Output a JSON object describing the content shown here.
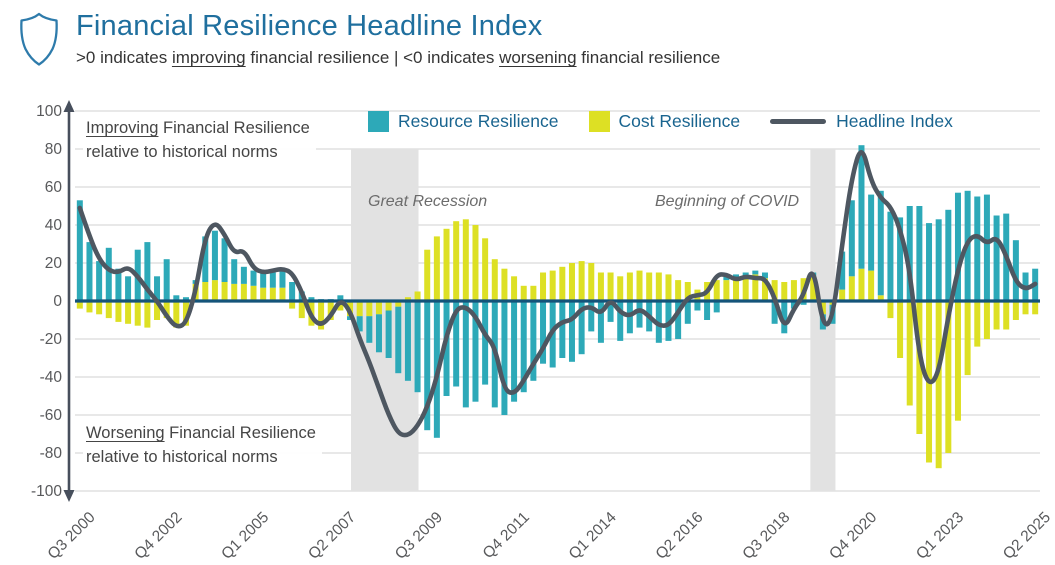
{
  "header": {
    "title": "Financial Resilience Headline Index",
    "subtitle": {
      "part1": ">0 indicates ",
      "underline1": "improving",
      "part2": " financial resilience | <0 indicates ",
      "underline2": "worsening",
      "part3": " financial resilience"
    }
  },
  "legend": {
    "resource_label": "Resource Resilience",
    "cost_label": "Cost Resilience",
    "headline_label": "Headline Index"
  },
  "annotations": {
    "improving_word": "Improving",
    "improving_rest": " Financial Resilience",
    "improving_line2": "relative to historical norms",
    "worsening_word": "Worsening",
    "worsening_rest": " Financial Resilience",
    "worsening_line2": "relative to historical norms"
  },
  "colors": {
    "resource": "#2da9b8",
    "cost": "#dde024",
    "headline": "#4e5761",
    "zero_line": "#14547a",
    "band": "#e2e2e2",
    "grid": "#dadada",
    "axis": "#474f5c",
    "tick_text": "#58595b",
    "title": "#1f6f9e",
    "legend_text": "#19648f"
  },
  "chart_data": {
    "type": "bar+line",
    "title": "Financial Resilience Headline Index",
    "ylim": [
      -100,
      100
    ],
    "grid": true,
    "legend_position": "top",
    "y_ticks": [
      100,
      80,
      60,
      40,
      20,
      0,
      -20,
      -40,
      -60,
      -80,
      -100
    ],
    "x_ticks": [
      {
        "index": 0,
        "label": "Q3 2000"
      },
      {
        "index": 9,
        "label": "Q4 2002"
      },
      {
        "index": 18,
        "label": "Q1 2005"
      },
      {
        "index": 27,
        "label": "Q2 2007"
      },
      {
        "index": 36,
        "label": "Q3 2009"
      },
      {
        "index": 45,
        "label": "Q4 2011"
      },
      {
        "index": 54,
        "label": "Q1 2014"
      },
      {
        "index": 63,
        "label": "Q2 2016"
      },
      {
        "index": 72,
        "label": "Q3 2018"
      },
      {
        "index": 81,
        "label": "Q4 2020"
      },
      {
        "index": 90,
        "label": "Q1 2023"
      },
      {
        "index": 99,
        "label": "Q2 2025"
      }
    ],
    "bands": [
      {
        "label": "Great Recession",
        "start": 28.6,
        "end": 35.6
      },
      {
        "label": "Beginning of COVID",
        "start": 76.2,
        "end": 78.8
      }
    ],
    "categories": [
      "Q3 2000",
      "Q4 2000",
      "Q1 2001",
      "Q2 2001",
      "Q3 2001",
      "Q4 2001",
      "Q1 2002",
      "Q2 2002",
      "Q3 2002",
      "Q4 2002",
      "Q1 2003",
      "Q2 2003",
      "Q3 2003",
      "Q4 2003",
      "Q1 2004",
      "Q2 2004",
      "Q3 2004",
      "Q4 2004",
      "Q1 2005",
      "Q2 2005",
      "Q3 2005",
      "Q4 2005",
      "Q1 2006",
      "Q2 2006",
      "Q3 2006",
      "Q4 2006",
      "Q1 2007",
      "Q2 2007",
      "Q3 2007",
      "Q4 2007",
      "Q1 2008",
      "Q2 2008",
      "Q3 2008",
      "Q4 2008",
      "Q1 2009",
      "Q2 2009",
      "Q3 2009",
      "Q4 2009",
      "Q1 2010",
      "Q2 2010",
      "Q3 2010",
      "Q4 2010",
      "Q1 2011",
      "Q2 2011",
      "Q3 2011",
      "Q4 2011",
      "Q1 2012",
      "Q2 2012",
      "Q3 2012",
      "Q4 2012",
      "Q1 2013",
      "Q2 2013",
      "Q3 2013",
      "Q4 2013",
      "Q1 2014",
      "Q2 2014",
      "Q3 2014",
      "Q4 2014",
      "Q1 2015",
      "Q2 2015",
      "Q3 2015",
      "Q4 2015",
      "Q1 2016",
      "Q2 2016",
      "Q3 2016",
      "Q4 2016",
      "Q1 2017",
      "Q2 2017",
      "Q3 2017",
      "Q4 2017",
      "Q1 2018",
      "Q2 2018",
      "Q3 2018",
      "Q4 2018",
      "Q1 2019",
      "Q2 2019",
      "Q3 2019",
      "Q4 2019",
      "Q1 2020",
      "Q2 2020",
      "Q3 2020",
      "Q4 2020",
      "Q1 2021",
      "Q2 2021",
      "Q3 2021",
      "Q4 2021",
      "Q1 2022",
      "Q2 2022",
      "Q3 2022",
      "Q4 2022",
      "Q1 2023",
      "Q2 2023",
      "Q3 2023",
      "Q4 2023",
      "Q1 2024",
      "Q2 2024",
      "Q3 2024",
      "Q4 2024",
      "Q1 2025",
      "Q2 2025"
    ],
    "series": {
      "resource": [
        53,
        31,
        21,
        28,
        17,
        13,
        27,
        31,
        13,
        22,
        3,
        2,
        2,
        24,
        26,
        23,
        13,
        9,
        8,
        8,
        8,
        9,
        10,
        5,
        2,
        1,
        1,
        3,
        -2,
        -8,
        -14,
        -20,
        -25,
        -35,
        -42,
        -48,
        -68,
        -72,
        -50,
        -45,
        -56,
        -53,
        -44,
        -56,
        -60,
        -53,
        -48,
        -42,
        -33,
        -35,
        -30,
        -32,
        -28,
        -16,
        -22,
        -11,
        -21,
        -17,
        -14,
        -16,
        -22,
        -21,
        -20,
        -12,
        -5,
        -10,
        -6,
        2,
        2,
        2,
        2,
        3,
        -12,
        -17,
        -4,
        -2,
        2,
        -8,
        -10,
        20,
        40,
        65,
        40,
        55,
        47,
        44,
        50,
        50,
        41,
        43,
        48,
        57,
        58,
        55,
        56,
        45,
        46,
        32,
        15,
        17
      ],
      "cost": [
        -4,
        -6,
        -7,
        -9,
        -11,
        -12,
        -13,
        -14,
        -10,
        -9,
        -14,
        -13,
        9,
        10,
        11,
        10,
        9,
        9,
        8,
        7,
        7,
        7,
        -4,
        -9,
        -13,
        -15,
        -10,
        -5,
        -8,
        -8,
        -8,
        -7,
        -5,
        -3,
        2,
        5,
        27,
        34,
        38,
        42,
        43,
        40,
        33,
        22,
        17,
        13,
        8,
        8,
        15,
        16,
        18,
        20,
        21,
        20,
        15,
        15,
        13,
        15,
        16,
        15,
        15,
        14,
        11,
        10,
        6,
        10,
        11,
        11,
        12,
        13,
        14,
        12,
        11,
        10,
        11,
        12,
        13,
        -7,
        -2,
        6,
        13,
        17,
        16,
        3,
        -9,
        -30,
        -55,
        -70,
        -85,
        -88,
        -80,
        -63,
        -39,
        -24,
        -20,
        -15,
        -15,
        -10,
        -7,
        -7
      ],
      "headline": [
        49,
        34,
        22,
        16,
        15,
        18,
        13,
        6,
        0,
        -8,
        -14,
        -12,
        5,
        34,
        42,
        35,
        25,
        27,
        17,
        15,
        16,
        17,
        15,
        5,
        -9,
        -13,
        -8,
        1,
        -5,
        -20,
        -32,
        -46,
        -60,
        -70,
        -71,
        -66,
        -56,
        -40,
        -18,
        -4,
        -3,
        -8,
        -18,
        -24,
        -47,
        -49,
        -42,
        -33,
        -25,
        -15,
        -11,
        -10,
        -4,
        -3,
        -7,
        1,
        -6,
        -8,
        -4,
        -8,
        -13,
        -13,
        -6,
        2,
        3,
        4,
        14,
        14,
        11,
        13,
        12,
        12,
        2,
        -15,
        -4,
        3,
        20,
        -14,
        -10,
        30,
        65,
        83,
        63,
        54,
        50,
        38,
        17,
        -30,
        -45,
        -38,
        -8,
        17,
        32,
        35,
        30,
        34,
        24,
        10,
        6,
        9
      ]
    }
  }
}
